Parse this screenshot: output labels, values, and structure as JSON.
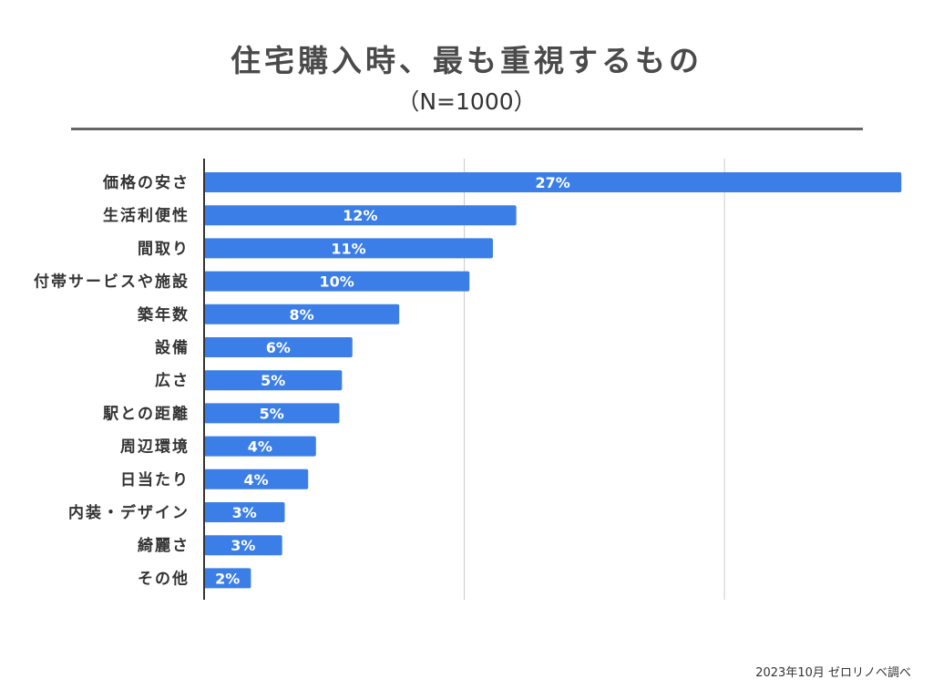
{
  "chart_data": {
    "type": "bar",
    "orientation": "horizontal",
    "title": "住宅購入時、最も重視するもの",
    "subtitle": "（N=1000）",
    "categories": [
      "価格の安さ",
      "生活利便性",
      "間取り",
      "付帯サービスや施設",
      "築年数",
      "設備",
      "広さ",
      "駅との距離",
      "周辺環境",
      "日当たり",
      "内装・デザイン",
      "綺麗さ",
      "その他"
    ],
    "values": [
      26.8,
      12.0,
      11.1,
      10.2,
      7.5,
      5.7,
      5.3,
      5.2,
      4.3,
      4.0,
      3.1,
      3.0,
      1.8
    ],
    "value_labels": [
      "27%",
      "12%",
      "11%",
      "10%",
      "8%",
      "6%",
      "5%",
      "5%",
      "4%",
      "4%",
      "3%",
      "3%",
      "2%"
    ],
    "xlim": [
      0,
      27
    ],
    "gridlines": [
      10,
      20
    ],
    "bar_color": "#3b7ee8",
    "grid_color": "#cccccc",
    "axis_color": "#333333"
  },
  "source": "2023年10月 ゼロリノベ調べ"
}
